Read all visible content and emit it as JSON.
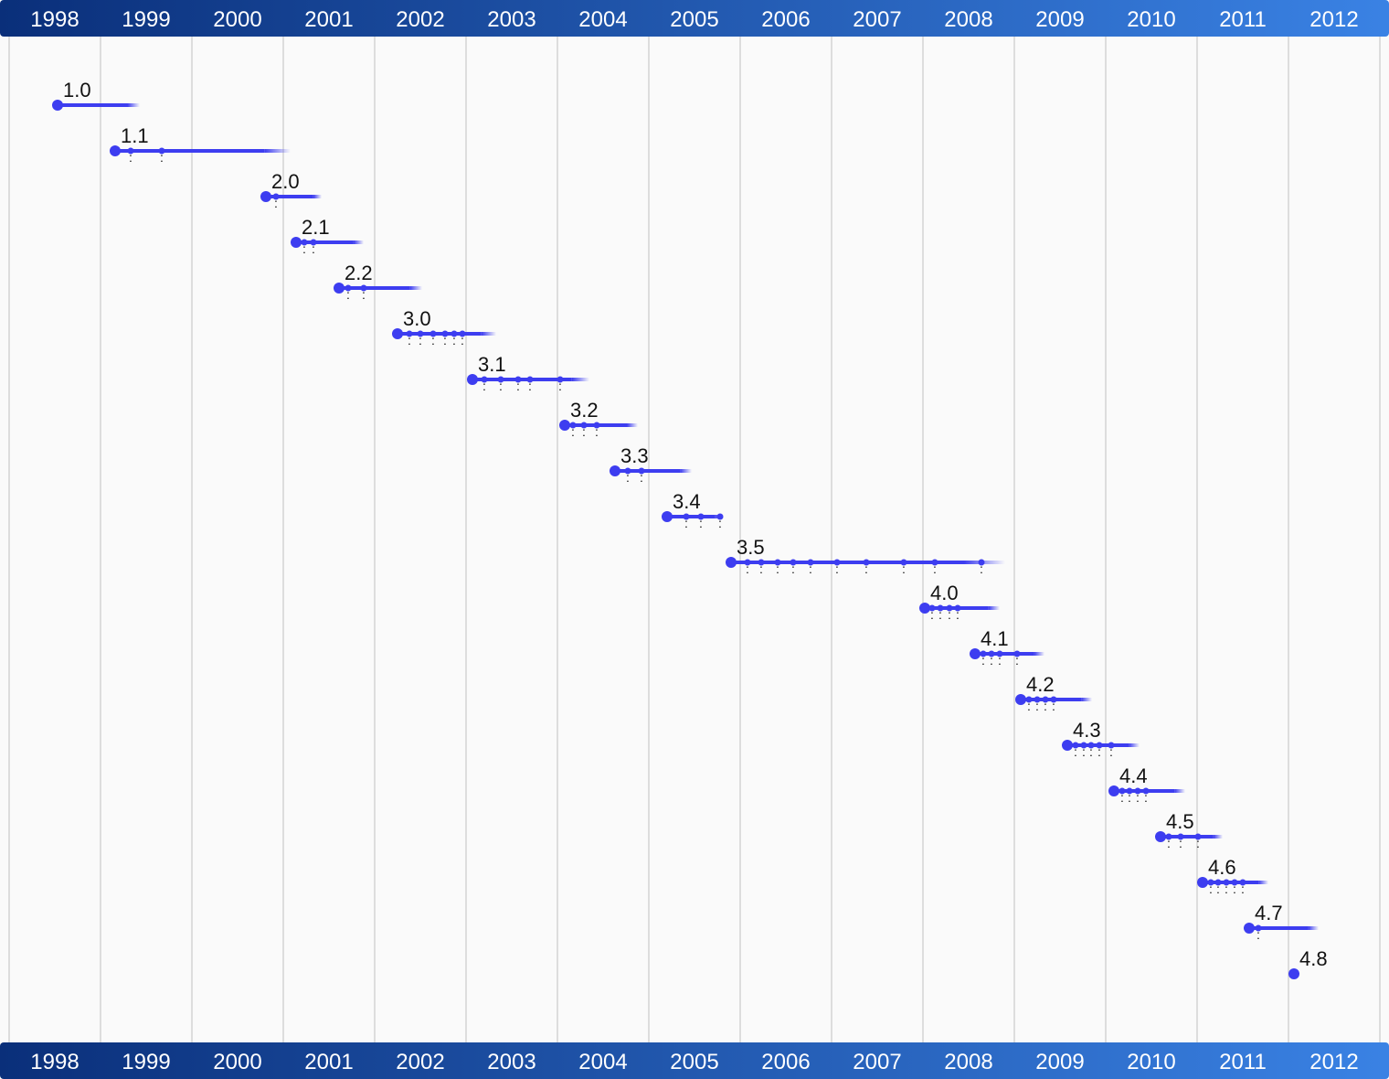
{
  "chart_data": {
    "type": "timeline",
    "title": "",
    "x_axis": {
      "labels": [
        "1998",
        "1999",
        "2000",
        "2001",
        "2002",
        "2003",
        "2004",
        "2005",
        "2006",
        "2007",
        "2008",
        "2009",
        "2010",
        "2011",
        "2012"
      ],
      "start_year": 1998,
      "end_year": 2013
    },
    "grid": true,
    "colors": {
      "bar": "#3d3df0",
      "grid": "#dddddd",
      "header_start": "#0a2f7a",
      "header_end": "#3a82e4"
    },
    "series": [
      {
        "name": "1.0",
        "start": 1998.53,
        "end": 1999.43,
        "points": []
      },
      {
        "name": "1.1",
        "start": 1999.16,
        "end": 2001.08,
        "points": [
          1999.33,
          1999.67
        ]
      },
      {
        "name": "2.0",
        "start": 2000.81,
        "end": 2001.42,
        "points": [
          2000.92
        ]
      },
      {
        "name": "2.1",
        "start": 2001.14,
        "end": 2001.88,
        "points": [
          2001.23,
          2001.33
        ]
      },
      {
        "name": "2.2",
        "start": 2001.61,
        "end": 2002.52,
        "points": [
          2001.71,
          2001.88
        ]
      },
      {
        "name": "3.0",
        "start": 2002.25,
        "end": 2003.33,
        "points": [
          2002.38,
          2002.5,
          2002.64,
          2002.77,
          2002.87,
          2002.96
        ]
      },
      {
        "name": "3.1",
        "start": 2003.07,
        "end": 2004.35,
        "points": [
          2003.2,
          2003.38,
          2003.57,
          2003.7,
          2004.03
        ]
      },
      {
        "name": "3.2",
        "start": 2004.08,
        "end": 2004.88,
        "points": [
          2004.17,
          2004.29,
          2004.43
        ]
      },
      {
        "name": "3.3",
        "start": 2004.63,
        "end": 2005.47,
        "points": [
          2004.77,
          2004.92
        ]
      },
      {
        "name": "3.4",
        "start": 2005.2,
        "end": 2005.82,
        "points": [
          2005.41,
          2005.57,
          2005.78
        ]
      },
      {
        "name": "3.5",
        "start": 2005.9,
        "end": 2008.9,
        "points": [
          2006.08,
          2006.23,
          2006.41,
          2006.58,
          2006.77,
          2007.06,
          2007.38,
          2007.79,
          2008.13,
          2008.64
        ]
      },
      {
        "name": "4.0",
        "start": 2008.02,
        "end": 2008.84,
        "points": [
          2008.1,
          2008.19,
          2008.29,
          2008.38
        ]
      },
      {
        "name": "4.1",
        "start": 2008.57,
        "end": 2009.33,
        "points": [
          2008.66,
          2008.75,
          2008.84,
          2009.03
        ]
      },
      {
        "name": "4.2",
        "start": 2009.07,
        "end": 2009.85,
        "points": [
          2009.16,
          2009.25,
          2009.34,
          2009.43
        ]
      },
      {
        "name": "4.3",
        "start": 2009.58,
        "end": 2010.37,
        "points": [
          2009.67,
          2009.76,
          2009.84,
          2009.93,
          2010.06
        ]
      },
      {
        "name": "4.4",
        "start": 2010.09,
        "end": 2010.87,
        "points": [
          2010.18,
          2010.26,
          2010.35,
          2010.44
        ]
      },
      {
        "name": "4.5",
        "start": 2010.6,
        "end": 2011.28,
        "points": [
          2010.69,
          2010.82,
          2011.01
        ]
      },
      {
        "name": "4.6",
        "start": 2011.06,
        "end": 2011.78,
        "points": [
          2011.15,
          2011.23,
          2011.32,
          2011.41,
          2011.5
        ]
      },
      {
        "name": "4.7",
        "start": 2011.57,
        "end": 2012.33,
        "points": [
          2011.67
        ]
      },
      {
        "name": "4.8",
        "start": 2012.06,
        "end": 2012.06,
        "points": []
      }
    ]
  }
}
